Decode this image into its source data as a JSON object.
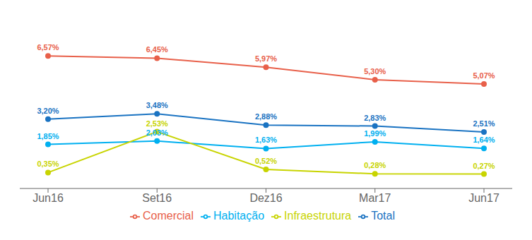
{
  "chart_data": {
    "type": "line",
    "categories": [
      "Jun16",
      "Set16",
      "Dez16",
      "Mar17",
      "Jun17"
    ],
    "series": [
      {
        "name": "Total",
        "color": "#1a73c2",
        "marker": "circle",
        "values": [
          3.2,
          3.48,
          2.88,
          2.83,
          2.51
        ],
        "value_labels": [
          "3,20%",
          "3,48%",
          "2,88%",
          "2,83%",
          "2,51%"
        ]
      },
      {
        "name": "Habitação",
        "color": "#00b0f0",
        "marker": "circle",
        "values": [
          1.85,
          2.03,
          1.63,
          1.99,
          1.64
        ],
        "value_labels": [
          "1,85%",
          "2,03%",
          "1,63%",
          "1,99%",
          "1,64%"
        ]
      },
      {
        "name": "Infraestrutura",
        "color": "#c8d400",
        "marker": "circle",
        "values": [
          0.35,
          2.53,
          0.52,
          0.28,
          0.27
        ],
        "value_labels": [
          "0,35%",
          "2,53%",
          "0,52%",
          "0,28%",
          "0,27%"
        ]
      },
      {
        "name": "Comercial",
        "color": "#e8604a",
        "marker": "circle",
        "values": [
          6.57,
          6.45,
          5.97,
          5.3,
          5.07
        ],
        "value_labels": [
          "6,57%",
          "6,45%",
          "5,97%",
          "5,30%",
          "5,07%"
        ]
      }
    ],
    "ylim": [
      -0.5,
      8.5
    ],
    "data_labels": true,
    "tick_labels": "x",
    "grid": false,
    "legend": "bottom"
  }
}
